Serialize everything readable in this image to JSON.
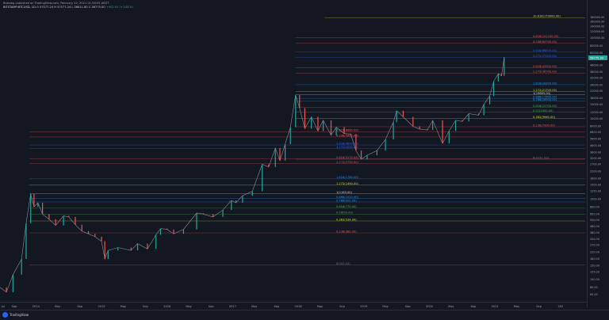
{
  "header": {
    "line1": "Bobsleg published on TradingView.com, February 22, 2021 01:58:55 AEDT",
    "symbol": "BITSTAMP:BTCUSD, 1D",
    "ohlc": "O 57577.24  H 57577.24  L 56611.80  C 56775.00",
    "change": "+902.91 (+1.61%)"
  },
  "footer": {
    "brand": "TradingView"
  },
  "chart_data": {
    "type": "line",
    "title": "",
    "x_tick_labels": [
      "Jul",
      "Sep",
      "2014",
      "May",
      "Sep",
      "2015",
      "May",
      "Sep",
      "2016",
      "May",
      "Sep",
      "2017",
      "May",
      "Sep",
      "2018",
      "May",
      "Sep",
      "2019",
      "May",
      "Sep",
      "2020",
      "May",
      "Sep",
      "2021",
      "May",
      "Sep",
      "202"
    ],
    "y_tick_labels": [
      "180000.00",
      "160000.00",
      "140000.00",
      "120000.00",
      "100000.00",
      "80000.00",
      "65000.00",
      "55000.00",
      "46000.00",
      "38000.00",
      "32000.00",
      "26000.00",
      "22000.00",
      "18000.00",
      "15000.00",
      "12000.00",
      "10000.00",
      "8000.00",
      "6800.00",
      "5600.00",
      "4600.00",
      "3800.00",
      "3200.00",
      "2700.00",
      "2200.00",
      "1800.00",
      "1500.00",
      "1250.00",
      "1000.00",
      "800.00",
      "650.00",
      "550.00",
      "460.00",
      "380.00",
      "320.00",
      "270.00",
      "220.00",
      "180.00",
      "150.00",
      "125.00",
      "100.00",
      "80.00",
      "65.00"
    ],
    "last_price_label": "56775.00",
    "fib_levels_2017": [
      {
        "label": "4.618(101200.00)",
        "color": "#ef5350"
      },
      {
        "label": "4.236(85700.00)",
        "color": "#ef5350"
      },
      {
        "label": "3.618(66800.00)",
        "color": "#2962ff"
      },
      {
        "label": "3.272(57200.00)",
        "color": "#2962ff"
      },
      {
        "label": "2.618(42500.00)",
        "color": "#ef5350"
      },
      {
        "label": "2.272(36700.00)",
        "color": "#ef5350"
      },
      {
        "label": "1.618(26300.00)",
        "color": "#2196f3"
      },
      {
        "label": "1.272(21700.00)",
        "color": "#cddc39"
      },
      {
        "label": "1(19665.00)",
        "color": "#d1d4dc"
      },
      {
        "label": "0.886(17800.00)",
        "color": "#2196f3"
      },
      {
        "label": "0.786(16500.00)",
        "color": "#2196f3"
      },
      {
        "label": "0.618(13700.00)",
        "color": "#4caf50"
      },
      {
        "label": "0.5(12000.00)",
        "color": "#4caf50"
      },
      {
        "label": "0.382(9960.00)",
        "color": "#cddc39"
      },
      {
        "label": "0.236(7900.00)",
        "color": "#ef5350"
      },
      {
        "label": "0(3121.53)",
        "color": "#787b86"
      }
    ],
    "fib_levels_2013": [
      {
        "label": "4.618(6860.00)",
        "color": "#ef5350"
      },
      {
        "label": "4.236(5900.00)",
        "color": "#ef5350"
      },
      {
        "label": "3.618(4690.00)",
        "color": "#2962ff"
      },
      {
        "label": "3.272(4250.00)",
        "color": "#2962ff"
      },
      {
        "label": "2.618(3170.00)",
        "color": "#ef5350"
      },
      {
        "label": "2.272(2750.00)",
        "color": "#ef5350"
      },
      {
        "label": "1.618(1780.00)",
        "color": "#2196f3"
      },
      {
        "label": "1.272(1490.00)",
        "color": "#cddc39"
      },
      {
        "label": "1(1163.00)",
        "color": "#d1d4dc"
      },
      {
        "label": "0.886(1020.00)",
        "color": "#2196f3"
      },
      {
        "label": "0.786(920.00)",
        "color": "#2196f3"
      },
      {
        "label": "0.618(770.00)",
        "color": "#4caf50"
      },
      {
        "label": "0.5(650.00)",
        "color": "#4caf50"
      },
      {
        "label": "0.382(534.00)",
        "color": "#cddc39"
      },
      {
        "label": "0.236(380.00)",
        "color": "#ef5350"
      },
      {
        "label": "0(151.22)",
        "color": "#787b86"
      }
    ],
    "top_label": "10.618(179000.00)",
    "series": [
      {
        "values": [
          [
            2013.45,
            80
          ],
          [
            2013.55,
            70
          ],
          [
            2013.65,
            115
          ],
          [
            2013.78,
            180
          ],
          [
            2013.85,
            500
          ],
          [
            2013.92,
            1163
          ],
          [
            2013.97,
            800
          ],
          [
            2014.03,
            900
          ],
          [
            2014.1,
            650
          ],
          [
            2014.2,
            560
          ],
          [
            2014.3,
            470
          ],
          [
            2014.42,
            620
          ],
          [
            2014.5,
            600
          ],
          [
            2014.6,
            480
          ],
          [
            2014.7,
            400
          ],
          [
            2014.8,
            370
          ],
          [
            2014.9,
            340
          ],
          [
            2015.0,
            300
          ],
          [
            2015.05,
            180
          ],
          [
            2015.1,
            230
          ],
          [
            2015.25,
            250
          ],
          [
            2015.45,
            230
          ],
          [
            2015.55,
            280
          ],
          [
            2015.7,
            240
          ],
          [
            2015.83,
            360
          ],
          [
            2015.9,
            430
          ],
          [
            2016.0,
            420
          ],
          [
            2016.1,
            370
          ],
          [
            2016.25,
            420
          ],
          [
            2016.45,
            670
          ],
          [
            2016.55,
            650
          ],
          [
            2016.7,
            600
          ],
          [
            2016.85,
            730
          ],
          [
            2016.98,
            960
          ],
          [
            2017.05,
            900
          ],
          [
            2017.15,
            1100
          ],
          [
            2017.3,
            1250
          ],
          [
            2017.45,
            2700
          ],
          [
            2017.55,
            2500
          ],
          [
            2017.65,
            4300
          ],
          [
            2017.72,
            3000
          ],
          [
            2017.8,
            4800
          ],
          [
            2017.88,
            7800
          ],
          [
            2017.96,
            19665
          ],
          [
            2018.02,
            13500
          ],
          [
            2018.1,
            7500
          ],
          [
            2018.2,
            10500
          ],
          [
            2018.3,
            7000
          ],
          [
            2018.38,
            9500
          ],
          [
            2018.5,
            6200
          ],
          [
            2018.58,
            7800
          ],
          [
            2018.7,
            6500
          ],
          [
            2018.8,
            6400
          ],
          [
            2018.88,
            4000
          ],
          [
            2018.96,
            3121.53
          ],
          [
            2019.05,
            3500
          ],
          [
            2019.2,
            4000
          ],
          [
            2019.33,
            5500
          ],
          [
            2019.45,
            9000
          ],
          [
            2019.5,
            12500
          ],
          [
            2019.6,
            10500
          ],
          [
            2019.75,
            8000
          ],
          [
            2019.85,
            7400
          ],
          [
            2019.97,
            7200
          ],
          [
            2020.05,
            9500
          ],
          [
            2020.2,
            4900
          ],
          [
            2020.3,
            7000
          ],
          [
            2020.4,
            9500
          ],
          [
            2020.5,
            9200
          ],
          [
            2020.6,
            11500
          ],
          [
            2020.75,
            11000
          ],
          [
            2020.83,
            15000
          ],
          [
            2020.92,
            19000
          ],
          [
            2020.98,
            29000
          ],
          [
            2021.05,
            36000
          ],
          [
            2021.1,
            34000
          ],
          [
            2021.14,
            57577
          ]
        ]
      }
    ]
  }
}
